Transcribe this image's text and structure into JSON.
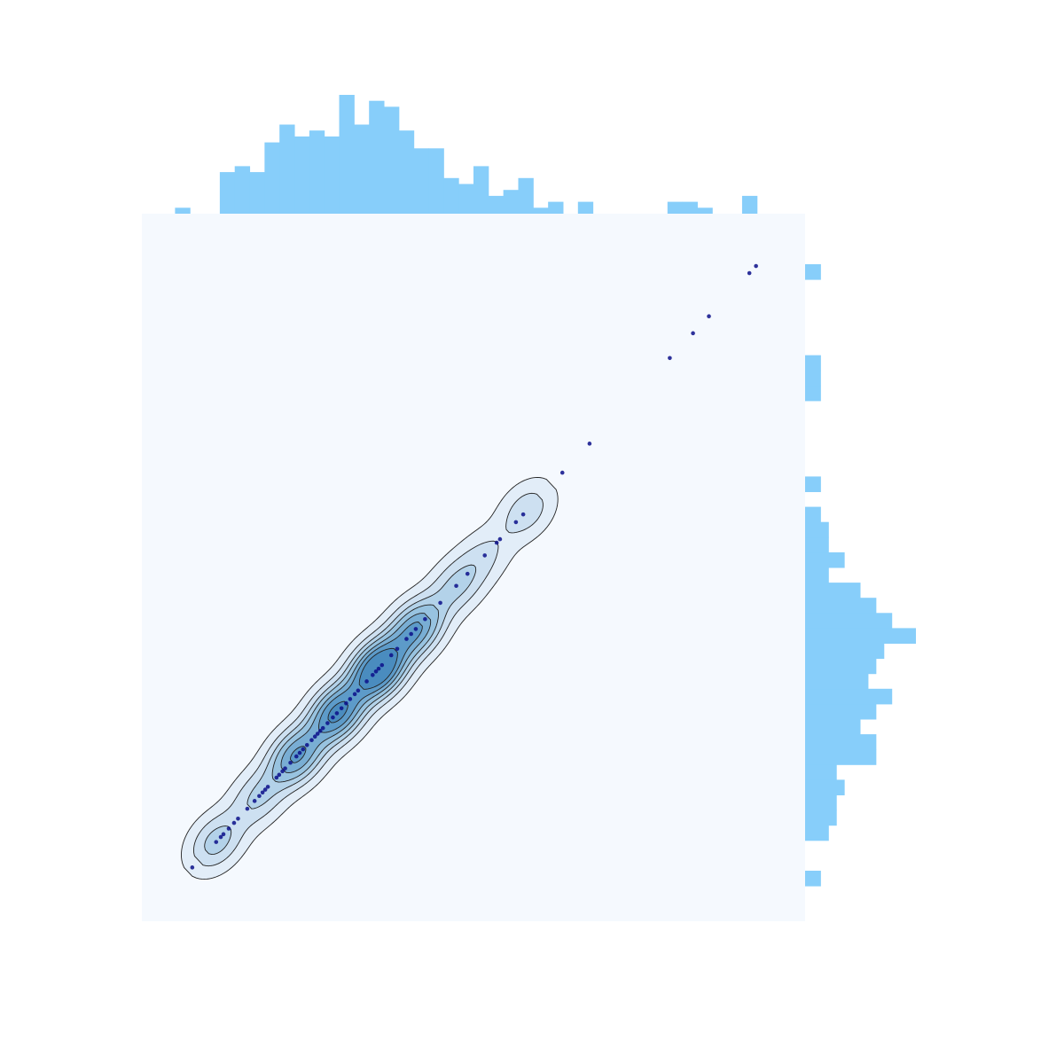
{
  "chart_data": {
    "type": "scatter",
    "title": "",
    "xlabel": "",
    "ylabel": "",
    "xlim": [
      0,
      100
    ],
    "ylim": [
      0,
      100
    ],
    "grid": false,
    "kde_contours": true,
    "colors": {
      "panel_bg": "#f5f9fe",
      "points": "#0a0f8a",
      "histogram": "#87cefa",
      "contour_line": "#222222",
      "fill_levels": [
        "#e2edf8",
        "#cde0f1",
        "#b3d2e9",
        "#98c3e0",
        "#79aed4",
        "#5d9bc9",
        "#4a8cbf"
      ]
    },
    "points": [
      {
        "x": 7.6,
        "y": 7.6
      },
      {
        "x": 11.2,
        "y": 11.2
      },
      {
        "x": 11.9,
        "y": 11.9
      },
      {
        "x": 12.3,
        "y": 12.3
      },
      {
        "x": 13.1,
        "y": 13.1
      },
      {
        "x": 13.9,
        "y": 13.9
      },
      {
        "x": 14.5,
        "y": 14.5
      },
      {
        "x": 15.9,
        "y": 15.9
      },
      {
        "x": 17.0,
        "y": 17.0
      },
      {
        "x": 17.7,
        "y": 17.7
      },
      {
        "x": 18.2,
        "y": 18.2
      },
      {
        "x": 18.6,
        "y": 18.6
      },
      {
        "x": 19.0,
        "y": 19.0
      },
      {
        "x": 20.3,
        "y": 20.3
      },
      {
        "x": 20.7,
        "y": 20.7
      },
      {
        "x": 21.2,
        "y": 21.2
      },
      {
        "x": 21.6,
        "y": 21.6
      },
      {
        "x": 22.4,
        "y": 22.4
      },
      {
        "x": 23.3,
        "y": 23.3
      },
      {
        "x": 23.8,
        "y": 23.8
      },
      {
        "x": 24.3,
        "y": 24.3
      },
      {
        "x": 24.9,
        "y": 24.9
      },
      {
        "x": 25.6,
        "y": 25.6
      },
      {
        "x": 26.1,
        "y": 26.1
      },
      {
        "x": 26.5,
        "y": 26.5
      },
      {
        "x": 26.9,
        "y": 26.9
      },
      {
        "x": 27.3,
        "y": 27.3
      },
      {
        "x": 28.0,
        "y": 28.0
      },
      {
        "x": 28.8,
        "y": 28.8
      },
      {
        "x": 29.4,
        "y": 29.4
      },
      {
        "x": 30.1,
        "y": 30.1
      },
      {
        "x": 30.8,
        "y": 30.8
      },
      {
        "x": 31.4,
        "y": 31.4
      },
      {
        "x": 32.1,
        "y": 32.1
      },
      {
        "x": 32.6,
        "y": 32.6
      },
      {
        "x": 33.9,
        "y": 33.9
      },
      {
        "x": 34.8,
        "y": 34.8
      },
      {
        "x": 35.3,
        "y": 35.3
      },
      {
        "x": 35.7,
        "y": 35.7
      },
      {
        "x": 36.2,
        "y": 36.2
      },
      {
        "x": 37.6,
        "y": 37.6
      },
      {
        "x": 38.5,
        "y": 38.5
      },
      {
        "x": 39.9,
        "y": 39.9
      },
      {
        "x": 40.6,
        "y": 40.6
      },
      {
        "x": 41.3,
        "y": 41.3
      },
      {
        "x": 42.7,
        "y": 42.7
      },
      {
        "x": 45.0,
        "y": 45.0
      },
      {
        "x": 47.4,
        "y": 47.4
      },
      {
        "x": 49.1,
        "y": 49.1
      },
      {
        "x": 51.7,
        "y": 51.7
      },
      {
        "x": 53.5,
        "y": 53.5
      },
      {
        "x": 54.0,
        "y": 54.0
      },
      {
        "x": 56.4,
        "y": 56.4
      },
      {
        "x": 57.5,
        "y": 57.5
      },
      {
        "x": 63.4,
        "y": 63.4
      },
      {
        "x": 67.5,
        "y": 67.5
      },
      {
        "x": 79.6,
        "y": 79.6
      },
      {
        "x": 83.1,
        "y": 83.1
      },
      {
        "x": 85.5,
        "y": 85.5
      },
      {
        "x": 91.6,
        "y": 91.6
      },
      {
        "x": 92.6,
        "y": 92.6
      }
    ],
    "density_peaks": [
      {
        "x": 11.2,
        "w": 0.7
      },
      {
        "x": 17.5,
        "w": 0.6
      },
      {
        "x": 23.3,
        "w": 1.4
      },
      {
        "x": 29.4,
        "w": 1.8
      },
      {
        "x": 35.6,
        "w": 2.3
      },
      {
        "x": 41.3,
        "w": 1.4
      },
      {
        "x": 47.4,
        "w": 0.6
      },
      {
        "x": 51.6,
        "w": 0.35
      },
      {
        "x": 58.0,
        "w": 0.5
      }
    ],
    "marginal_x": {
      "range": [
        5,
        95
      ],
      "counts": [
        1,
        0,
        0,
        7,
        8,
        7,
        12,
        15,
        13,
        14,
        13,
        20,
        15,
        19,
        18,
        14,
        11,
        11,
        6,
        5,
        8,
        3,
        4,
        6,
        1,
        2,
        0,
        2,
        0,
        0,
        0,
        0,
        0,
        2,
        2,
        1,
        0,
        0,
        3,
        0
      ]
    },
    "marginal_y": {
      "range": [
        5,
        95
      ],
      "counts": [
        2,
        0,
        0,
        3,
        4,
        4,
        5,
        4,
        9,
        9,
        7,
        9,
        11,
        8,
        9,
        10,
        14,
        11,
        9,
        7,
        3,
        5,
        3,
        3,
        2,
        0,
        2,
        0,
        0,
        0,
        0,
        0,
        2,
        2,
        2,
        0,
        0,
        0,
        0,
        0,
        2,
        0
      ]
    }
  }
}
